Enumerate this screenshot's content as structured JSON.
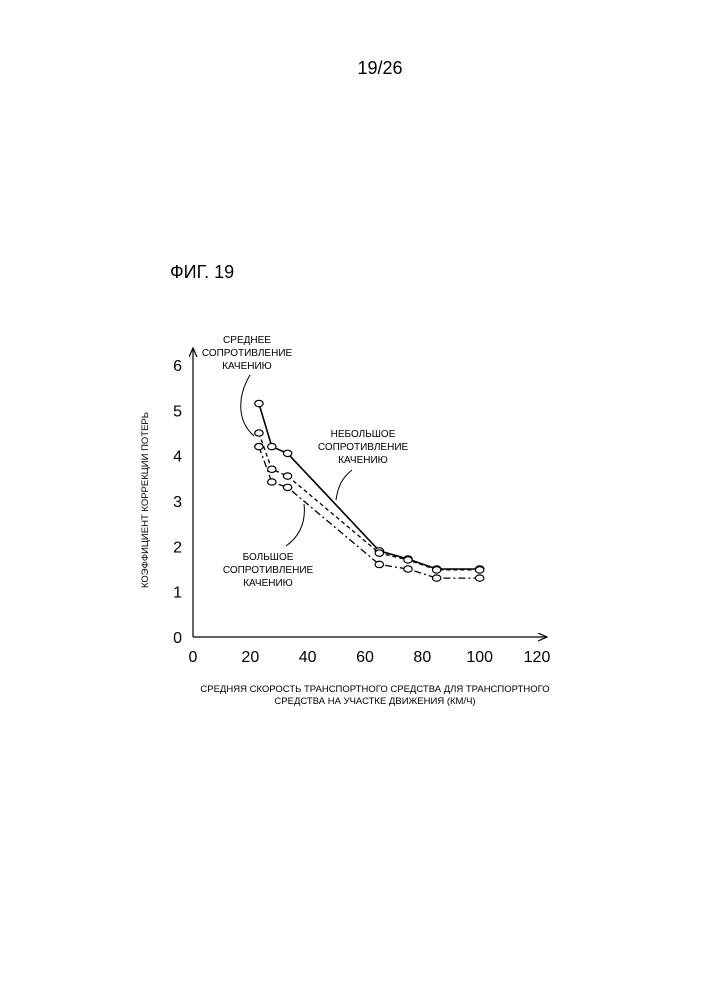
{
  "page": {
    "number": "19/26",
    "figure_label": "ФИГ. 19"
  },
  "chart_data": {
    "type": "line",
    "title": "",
    "xlabel_lines": [
      "СРЕДНЯЯ СКОРОСТЬ ТРАНСПОРТНОГО СРЕДСТВА ДЛЯ ТРАНСПОРТНОГО",
      "СРЕДСТВА НА УЧАСТКЕ ДВИЖЕНИЯ (КМ/Ч)"
    ],
    "ylabel": "КОЭФФИЦИЕНТ КОРРЕКЦИИ ПОТЕРЬ",
    "xlim": [
      0,
      120
    ],
    "ylim": [
      0,
      6
    ],
    "xticks": [
      0,
      20,
      40,
      60,
      80,
      100,
      120
    ],
    "yticks": [
      0,
      1,
      2,
      3,
      4,
      5,
      6
    ],
    "grid": false,
    "series": [
      {
        "label_lines": [
          "НЕБОЛЬШОЕ",
          "СОПРОТИВЛЕНИЕ",
          "КАЧЕНИЮ"
        ],
        "line_style": "solid",
        "x": [
          23,
          27.5,
          33,
          65,
          75,
          85,
          100
        ],
        "y": [
          5.15,
          4.2,
          4.05,
          1.9,
          1.72,
          1.5,
          1.5
        ]
      },
      {
        "label_lines": [
          "СРЕДНЕЕ",
          "СОПРОТИВЛЕНИЕ",
          "КАЧЕНИЮ"
        ],
        "line_style": "dashed",
        "x": [
          23,
          27.5,
          33,
          65,
          75,
          85,
          100
        ],
        "y": [
          4.5,
          3.7,
          3.55,
          1.85,
          1.7,
          1.48,
          1.48
        ]
      },
      {
        "label_lines": [
          "БОЛЬШОЕ",
          "СОПРОТИВЛЕНИЕ",
          "КАЧЕНИЮ"
        ],
        "line_style": "dashdot",
        "x": [
          23,
          27.5,
          33,
          65,
          75,
          85,
          100
        ],
        "y": [
          4.2,
          3.42,
          3.3,
          1.6,
          1.5,
          1.3,
          1.3
        ]
      }
    ]
  }
}
